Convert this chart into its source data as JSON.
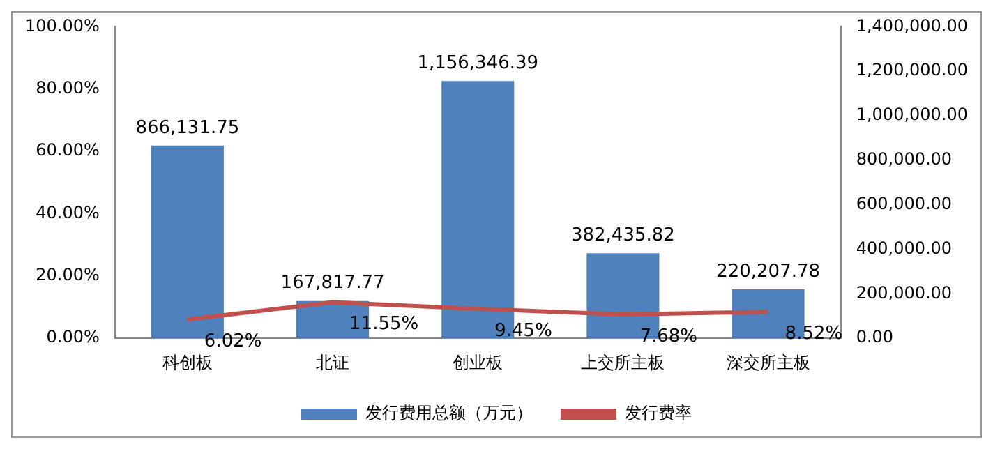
{
  "chart_data": {
    "type": "bar",
    "categories": [
      "科创板",
      "北证",
      "创业板",
      "上交所主板",
      "深交所主板"
    ],
    "series": [
      {
        "name": "发行费用总额（万元）",
        "axis": "y2",
        "color": "#4f81bd",
        "values": [
          866131.75,
          167817.77,
          1156346.39,
          382435.82,
          220207.78
        ],
        "value_labels": [
          "866,131.75",
          "167,817.77",
          "1,156,346.39",
          "382,435.82",
          "220,207.78"
        ]
      },
      {
        "name": "发行费率",
        "type": "line",
        "axis": "y",
        "color": "#c0504d",
        "values": [
          6.02,
          11.55,
          9.45,
          7.68,
          8.52
        ],
        "value_labels": [
          "6.02%",
          "11.55%",
          "9.45%",
          "7.68%",
          "8.52%"
        ]
      }
    ],
    "ylim": [
      0,
      100
    ],
    "yticks": [
      {
        "value": 0,
        "label": "0.00%"
      },
      {
        "value": 20,
        "label": "20.00%"
      },
      {
        "value": 40,
        "label": "40.00%"
      },
      {
        "value": 60,
        "label": "60.00%"
      },
      {
        "value": 80,
        "label": "80.00%"
      },
      {
        "value": 100,
        "label": "100.00%"
      }
    ],
    "y2lim": [
      0,
      1400000
    ],
    "y2ticks": [
      {
        "value": 0,
        "label": "0.00"
      },
      {
        "value": 200000,
        "label": "200,000.00"
      },
      {
        "value": 400000,
        "label": "400,000.00"
      },
      {
        "value": 600000,
        "label": "600,000.00"
      },
      {
        "value": 800000,
        "label": "800,000.00"
      },
      {
        "value": 1000000,
        "label": "1,000,000.00"
      },
      {
        "value": 1200000,
        "label": "1,200,000.00"
      },
      {
        "value": 1400000,
        "label": "1,400,000.00"
      }
    ],
    "legend": "bottom",
    "grid": false,
    "marker": "none"
  }
}
